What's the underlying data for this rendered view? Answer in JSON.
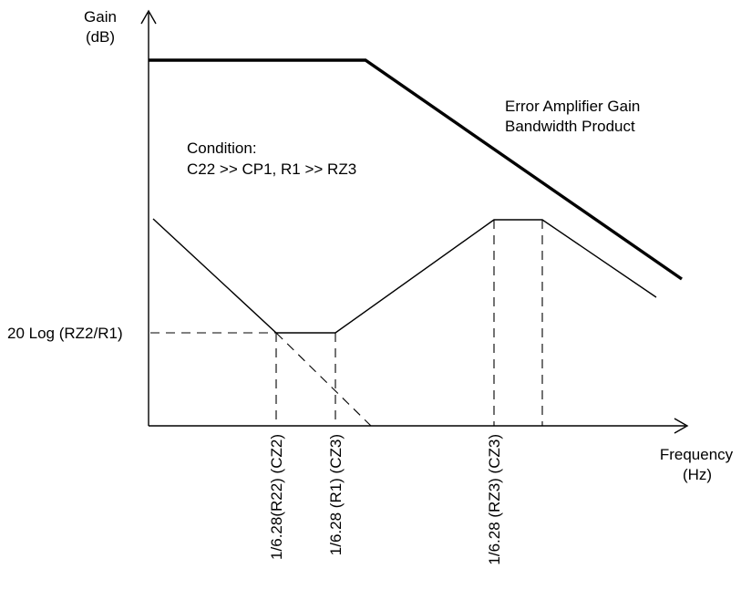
{
  "axes": {
    "y_label_line1": "Gain",
    "y_label_line2": "(dB)",
    "x_label_line1": "Frequency",
    "x_label_line2": "(Hz)"
  },
  "annotations": {
    "gbp_line1": "Error Amplifier Gain",
    "gbp_line2": "Bandwidth Product",
    "condition_line1": "Condition:",
    "condition_line2": "C22 >> CP1, R1 >> RZ3",
    "gain_level": "20 Log (RZ2/R1)"
  },
  "frequency_labels": [
    "1/6.28(R22) (CZ2)",
    "1/6.28 (R1) (CZ3)",
    "1/6.28 (RZ3) (CZ3)"
  ]
}
